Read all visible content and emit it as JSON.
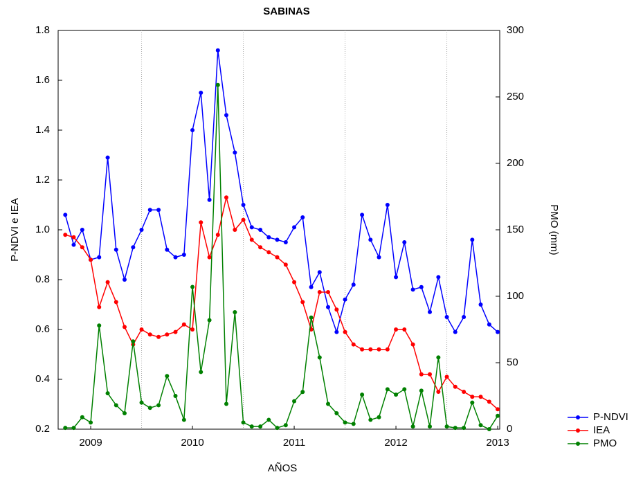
{
  "chart_data": {
    "type": "line",
    "title": "SABINAS",
    "x_label": "AÑOS",
    "y_label": "P-NDVI e IEA",
    "y2_label": "PMO (mm)",
    "x": [
      2008.75,
      2008.833,
      2008.917,
      2009.0,
      2009.083,
      2009.167,
      2009.25,
      2009.333,
      2009.417,
      2009.5,
      2009.583,
      2009.667,
      2009.75,
      2009.833,
      2009.917,
      2010.0,
      2010.083,
      2010.167,
      2010.25,
      2010.333,
      2010.417,
      2010.5,
      2010.583,
      2010.667,
      2010.75,
      2010.833,
      2010.917,
      2011.0,
      2011.083,
      2011.167,
      2011.25,
      2011.333,
      2011.417,
      2011.5,
      2011.583,
      2011.667,
      2011.75,
      2011.833,
      2011.917,
      2012.0,
      2012.083,
      2012.167,
      2012.25,
      2012.333,
      2012.417,
      2012.5,
      2012.583,
      2012.667,
      2012.75,
      2012.833,
      2012.917,
      2013.0
    ],
    "series": [
      {
        "name": "P-NDVI",
        "color": "#0000ff",
        "axis": "y",
        "values": [
          1.06,
          0.94,
          1.0,
          0.88,
          0.89,
          1.29,
          0.92,
          0.8,
          0.93,
          1.0,
          1.08,
          1.08,
          0.92,
          0.89,
          0.9,
          1.4,
          1.55,
          1.12,
          1.72,
          1.46,
          1.31,
          1.1,
          1.01,
          1.0,
          0.97,
          0.96,
          0.95,
          1.01,
          1.05,
          0.77,
          0.83,
          0.69,
          0.59,
          0.72,
          0.78,
          1.06,
          0.96,
          0.89,
          1.1,
          0.81,
          0.95,
          0.76,
          0.77,
          0.67,
          0.81,
          0.65,
          0.59,
          0.65,
          0.96,
          0.7,
          0.62,
          0.59
        ]
      },
      {
        "name": "IEA",
        "color": "#ff0000",
        "axis": "y",
        "values": [
          0.98,
          0.97,
          0.93,
          0.88,
          0.69,
          0.79,
          0.71,
          0.61,
          0.54,
          0.6,
          0.58,
          0.57,
          0.58,
          0.59,
          0.62,
          0.6,
          1.03,
          0.89,
          0.98,
          1.13,
          1.0,
          1.04,
          0.96,
          0.93,
          0.91,
          0.89,
          0.86,
          0.79,
          0.71,
          0.6,
          0.75,
          0.75,
          0.68,
          0.59,
          0.54,
          0.52,
          0.52,
          0.52,
          0.52,
          0.6,
          0.6,
          0.54,
          0.42,
          0.42,
          0.35,
          0.41,
          0.37,
          0.35,
          0.33,
          0.33,
          0.31,
          0.28
        ]
      },
      {
        "name": "PMO",
        "color": "#008000",
        "axis": "y2",
        "values": [
          1,
          1,
          9,
          5,
          78,
          27,
          18,
          12,
          66,
          20,
          16,
          18,
          40,
          25,
          7,
          107,
          43,
          82,
          259,
          19,
          88,
          5,
          2,
          2,
          7,
          1,
          3,
          21,
          28,
          84,
          54,
          19,
          12,
          5,
          4,
          26,
          7,
          9,
          30,
          26,
          30,
          2,
          29,
          2,
          54,
          2,
          1,
          1,
          20,
          3,
          0,
          10
        ]
      }
    ],
    "xlim": [
      2008.68,
      2013.02
    ],
    "xticks": [
      2009,
      2010,
      2011,
      2012,
      2013
    ],
    "ylim": [
      0.2,
      1.8
    ],
    "yticks": [
      0.2,
      0.4,
      0.6,
      0.8,
      {
        "value": 1.0,
        "label": "1.0"
      },
      1.2,
      1.4,
      1.6,
      1.8
    ],
    "y2lim": [
      0,
      300
    ],
    "y2ticks": [
      0,
      50,
      100,
      150,
      200,
      250,
      300
    ],
    "legend": "bottom-right"
  }
}
